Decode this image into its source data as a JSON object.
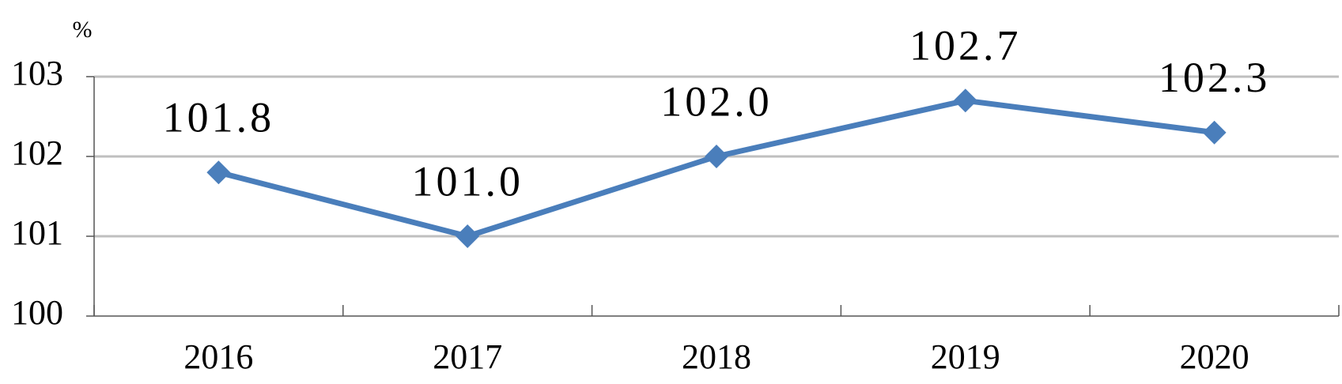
{
  "chart_data": {
    "type": "line",
    "y_label": "%",
    "categories": [
      "2016",
      "2017",
      "2018",
      "2019",
      "2020"
    ],
    "values": [
      101.8,
      101.0,
      102.0,
      102.7,
      102.3
    ],
    "value_labels": [
      "101.8",
      "101.0",
      "102.0",
      "102.7",
      "102.3"
    ],
    "color": "#4a7ebb",
    "ylim": [
      100,
      103
    ],
    "yticks": [
      100,
      101,
      102,
      103
    ],
    "grid": true
  }
}
